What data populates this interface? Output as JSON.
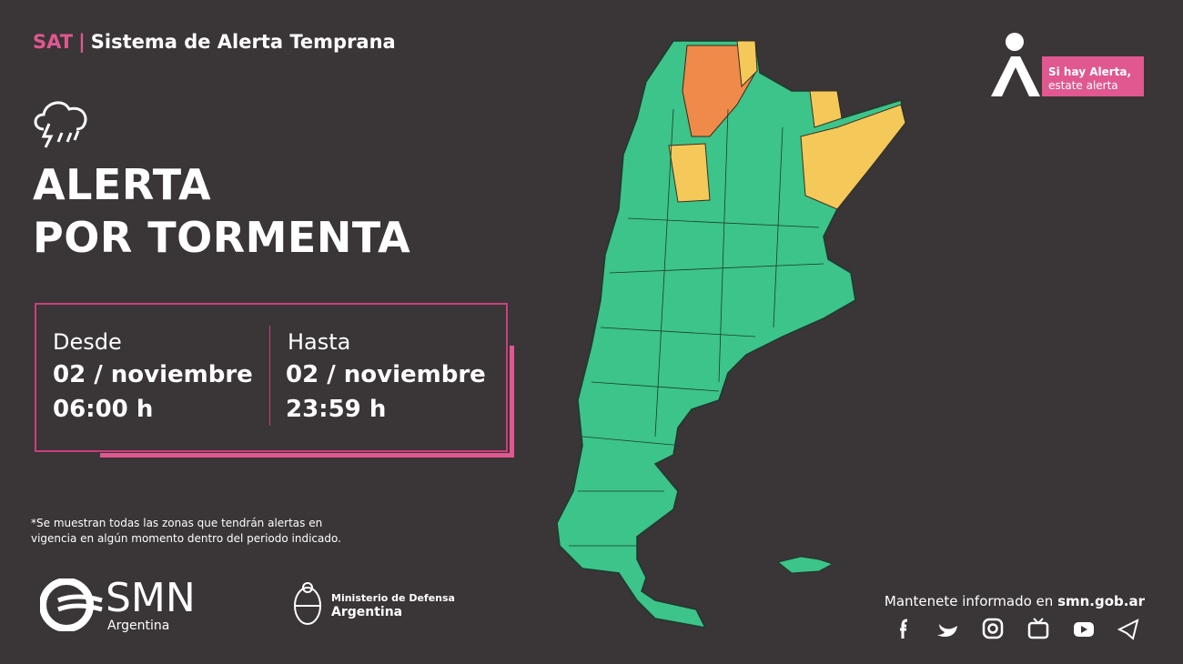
{
  "header": {
    "tag": "SAT",
    "title": "Sistema de Alerta Temprana"
  },
  "alert": {
    "title_lines": [
      "ALERTA",
      "POR TORMENTA"
    ]
  },
  "period": {
    "from": {
      "label": "Desde",
      "date": "02 / noviembre",
      "time": "06:00 h"
    },
    "to": {
      "label": "Hasta",
      "date": "02 / noviembre",
      "time": "23:59 h"
    }
  },
  "footnote": [
    "*Se muestran todas las zonas que tendrán alertas en",
    "vigencia en algún momento dentro del periodo indicado."
  ],
  "badge": {
    "line1": "Si hay Alerta,",
    "line2": "estate alerta"
  },
  "logos": {
    "smn": "SMN",
    "smn_country": "Argentina",
    "ministry": "Ministerio de Defensa",
    "ministry_country": "Argentina"
  },
  "footer": {
    "text": "Mantenete informado en",
    "site": "smn.gob.ar"
  }
}
